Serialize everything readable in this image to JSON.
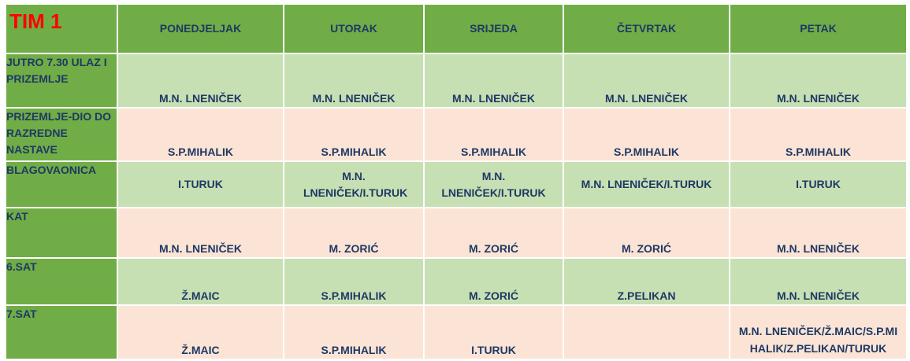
{
  "title": "TIM 1",
  "days": [
    "PONEDJELJAK",
    "UTORAK",
    "SRIJEDA",
    "ČETVRTAK",
    "PETAK"
  ],
  "rows": [
    {
      "label": "JUTRO 7.30 ULAZ I PRIZEMLJE",
      "cells": [
        "M.N. LNENIČEK",
        "M.N. LNENIČEK",
        "M.N. LNENIČEK",
        "M.N. LNENIČEK",
        "M.N. LNENIČEK"
      ]
    },
    {
      "label": "PRIZEMLJE-DIO DO RAZREDNE NASTAVE",
      "cells": [
        "S.P.MIHALIK",
        "S.P.MIHALIK",
        "S.P.MIHALIK",
        "S.P.MIHALIK",
        "S.P.MIHALIK"
      ]
    },
    {
      "label": "BLAGOVAONICA",
      "cells": [
        "I.TURUK",
        "M.N. LNENIČEK/I.TURUK",
        "M.N. LNENIČEK/I.TURUK",
        "M.N. LNENIČEK/I.TURUK",
        "I.TURUK"
      ]
    },
    {
      "label": "KAT",
      "cells": [
        "M.N. LNENIČEK",
        "M. ZORIĆ",
        "M. ZORIĆ",
        "M. ZORIĆ",
        "M.N. LNENIČEK"
      ]
    },
    {
      "label": "6.SAT",
      "cells": [
        "Ž.MAIC",
        "S.P.MIHALIK",
        "M. ZORIĆ",
        "Z.PELIKAN",
        "M.N. LNENIČEK"
      ]
    },
    {
      "label": "7.SAT",
      "cells": [
        "Ž.MAIC",
        "S.P.MIHALIK",
        "I.TURUK",
        "",
        "M.N. LNENIČEK/Ž.MAIC/S.P.MIHALIK/Z.PELIKAN/TURUK"
      ]
    }
  ]
}
